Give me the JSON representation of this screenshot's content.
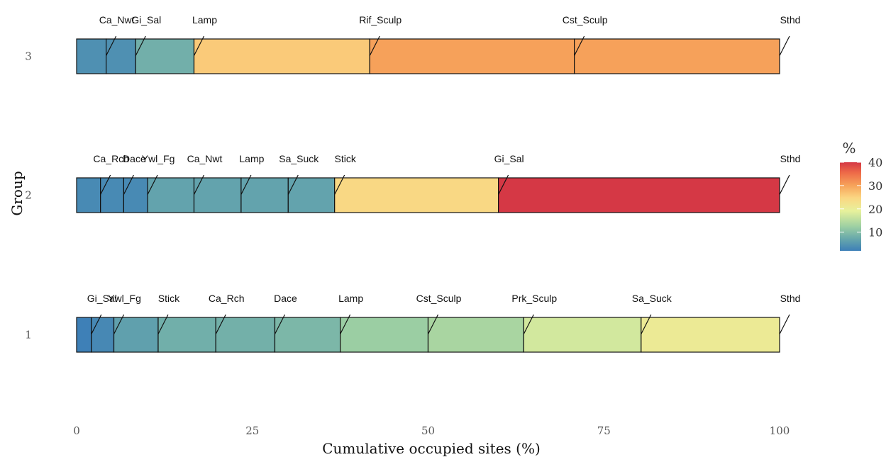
{
  "chart_data": {
    "type": "bar",
    "subtype": "stacked-horizontal-cumulative",
    "xlabel": "Cumulative occupied sites (%)",
    "ylabel": "Group",
    "xlim": [
      0,
      100
    ],
    "x_ticks": [
      "0",
      "25",
      "50",
      "75",
      "100"
    ],
    "x_tick_values": [
      0,
      25,
      50,
      75,
      100
    ],
    "y_categories": [
      "3",
      "2",
      "1"
    ],
    "legend": {
      "title": "%",
      "position": "right",
      "ticks": [
        "40",
        "30",
        "20",
        "10"
      ],
      "tick_values": [
        40,
        30,
        20,
        10
      ],
      "range": [
        2,
        40
      ],
      "palette": [
        "#3d7fb7",
        "#69a9ab",
        "#9fd1a2",
        "#e7f19c",
        "#fbd682",
        "#f6a25a",
        "#ee6b48",
        "#d53845"
      ]
    },
    "groups": [
      {
        "group": "3",
        "segments": [
          {
            "label": "",
            "start": 0,
            "end": 4.2,
            "value": 4.2
          },
          {
            "label": "Ca_Nwt",
            "start": 4.2,
            "end": 8.4,
            "value": 4.2
          },
          {
            "label": "Gi_Sal",
            "start": 8.4,
            "end": 16.7,
            "value": 8.3
          },
          {
            "label": "Lamp",
            "start": 16.7,
            "end": 41.7,
            "value": 25.0
          },
          {
            "label": "Rif_Sculp",
            "start": 41.7,
            "end": 70.8,
            "value": 29.2
          },
          {
            "label": "Cst_Sculp",
            "start": 70.8,
            "end": 100,
            "value": 29.2
          },
          {
            "label": "Sthd",
            "start": 100,
            "end": 100,
            "value": 0
          }
        ]
      },
      {
        "group": "2",
        "segments": [
          {
            "label": "",
            "start": 0,
            "end": 3.4,
            "value": 3.4
          },
          {
            "label": "Ca_Rch",
            "start": 3.4,
            "end": 6.7,
            "value": 3.4
          },
          {
            "label": "Dace",
            "start": 6.7,
            "end": 10.1,
            "value": 3.4
          },
          {
            "label": "Ywl_Fg",
            "start": 10.1,
            "end": 16.7,
            "value": 6.7
          },
          {
            "label": "Ca_Nwt",
            "start": 16.7,
            "end": 23.4,
            "value": 6.7
          },
          {
            "label": "Lamp",
            "start": 23.4,
            "end": 30.1,
            "value": 6.7
          },
          {
            "label": "Sa_Suck",
            "start": 30.1,
            "end": 36.7,
            "value": 6.7
          },
          {
            "label": "Stick",
            "start": 36.7,
            "end": 60.0,
            "value": 23.3
          },
          {
            "label": "Gi_Sal",
            "start": 60.0,
            "end": 100,
            "value": 40.0
          },
          {
            "label": "Sthd",
            "start": 100,
            "end": 100,
            "value": 0
          }
        ]
      },
      {
        "group": "1",
        "segments": [
          {
            "label": "",
            "start": 0,
            "end": 2.1,
            "value": 2.1
          },
          {
            "label": "Gi_Sal",
            "start": 2.1,
            "end": 5.3,
            "value": 3.2
          },
          {
            "label": "Ywl_Fg",
            "start": 5.3,
            "end": 11.6,
            "value": 6.3
          },
          {
            "label": "Stick",
            "start": 11.6,
            "end": 19.8,
            "value": 8.2
          },
          {
            "label": "Ca_Rch",
            "start": 19.8,
            "end": 28.2,
            "value": 8.4
          },
          {
            "label": "Dace",
            "start": 28.2,
            "end": 37.5,
            "value": 9.3
          },
          {
            "label": "Lamp",
            "start": 37.5,
            "end": 50.0,
            "value": 12.5
          },
          {
            "label": "Cst_Sculp",
            "start": 50.0,
            "end": 63.6,
            "value": 13.6
          },
          {
            "label": "Prk_Sculp",
            "start": 63.6,
            "end": 80.3,
            "value": 16.7
          },
          {
            "label": "Sa_Suck",
            "start": 80.3,
            "end": 100,
            "value": 19.7
          },
          {
            "label": "Sthd",
            "start": 100,
            "end": 100,
            "value": 0
          }
        ]
      }
    ]
  }
}
